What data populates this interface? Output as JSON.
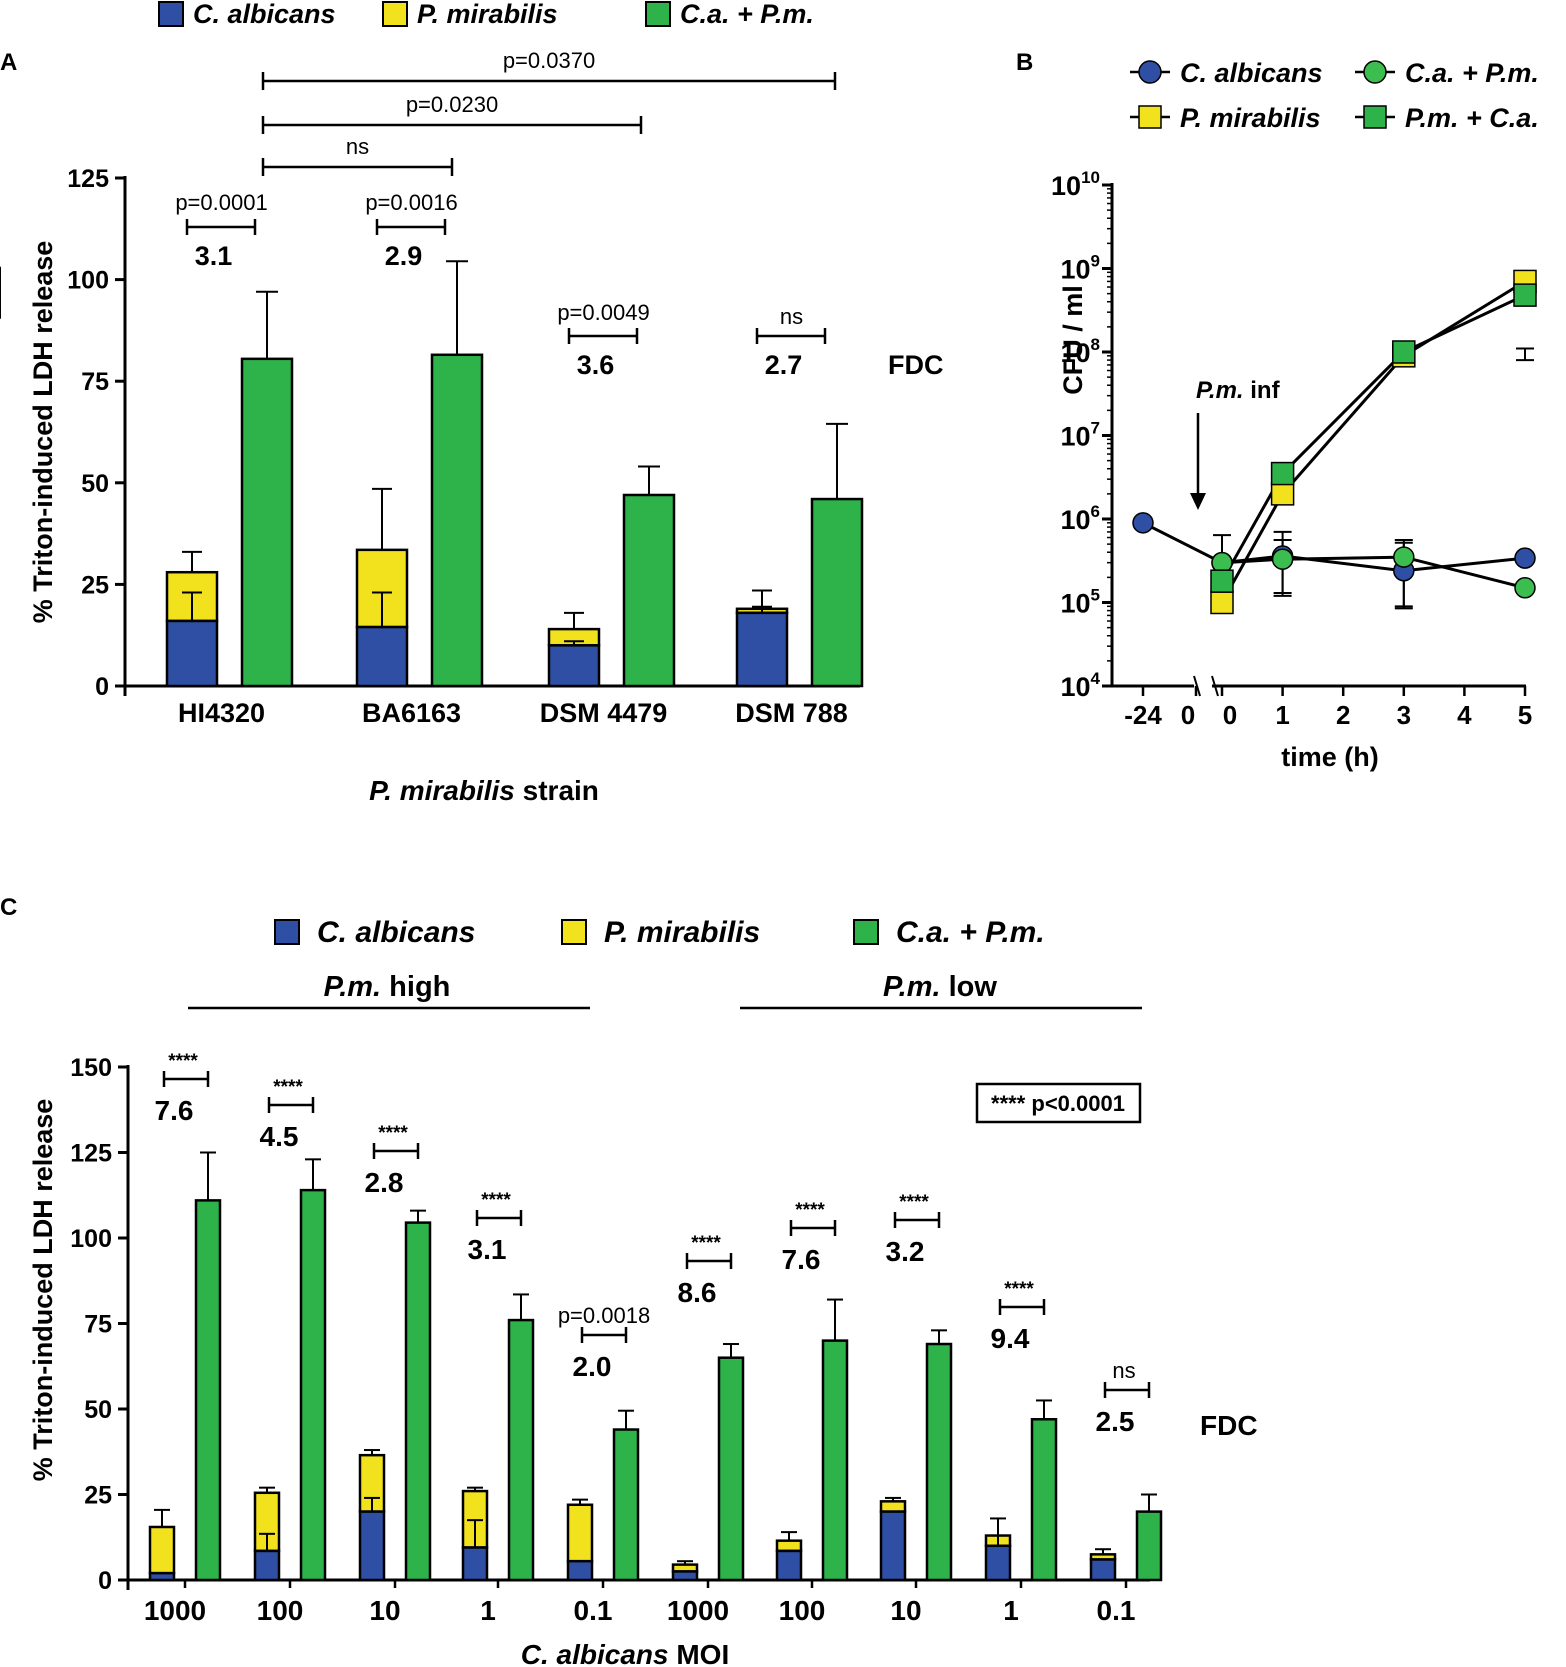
{
  "colors": {
    "ca": "#2e4fa4",
    "pm": "#f2e21e",
    "mix": "#2db34a",
    "circle_mix": "#3cbd4f"
  },
  "chart_data": [
    {
      "panel": "A",
      "type": "bar",
      "stacked_series": [
        "C. albicans",
        "P. mirabilis"
      ],
      "legend": [
        {
          "label": "C. albicans",
          "color_key": "ca"
        },
        {
          "label": "P. mirabilis",
          "color_key": "pm"
        },
        {
          "label": "C.a. + P.m.",
          "color_key": "mix"
        }
      ],
      "ylabel": "% Triton-induced LDH release",
      "xlabel_italic": "P. mirabilis",
      "xlabel_rest": " strain",
      "ylim": [
        0,
        125
      ],
      "yticks": [
        "0",
        "25",
        "50",
        "75",
        "100",
        "125"
      ],
      "categories": [
        "HI4320",
        "BA6163",
        "DSM 4479",
        "DSM 788"
      ],
      "series": [
        {
          "name": "C. albicans",
          "values": [
            16,
            14.5,
            10,
            18
          ],
          "errors": [
            7,
            8.5,
            1,
            1.5
          ]
        },
        {
          "name": "P. mirabilis",
          "values": [
            12,
            19,
            4,
            1
          ],
          "errors": [
            5,
            15,
            4,
            4.5
          ]
        },
        {
          "name": "C.a. + P.m.",
          "values": [
            80.5,
            81.5,
            47,
            46
          ],
          "errors": [
            16.5,
            23,
            7,
            18.5
          ]
        }
      ],
      "fdc_label": "FDC",
      "fdc_values": [
        "3.1",
        "2.9",
        "3.6",
        "2.7"
      ],
      "within_p": [
        "p=0.0001",
        "p=0.0016",
        "p=0.0049",
        "ns"
      ],
      "between_p": [
        "ns",
        "p=0.0230",
        "p=0.0370"
      ]
    },
    {
      "panel": "B",
      "type": "line",
      "ylabel": "CFU / ml",
      "xlabel": "time (h)",
      "yscale": "log",
      "ylim_exponents": [
        4,
        10
      ],
      "ytick_base": "10",
      "ytick_exponents": [
        "4",
        "5",
        "6",
        "7",
        "8",
        "9",
        "10"
      ],
      "xtick_labels": [
        "-24",
        "0",
        "0",
        "1",
        "2",
        "3",
        "4",
        "5"
      ],
      "annotation_italic": "P.m.",
      "annotation_rest": " inf",
      "legend": [
        {
          "label": "C. albicans",
          "marker": "circle",
          "color_key": "ca"
        },
        {
          "label": "C.a. + P.m.",
          "marker": "circle",
          "color_key": "circle_mix"
        },
        {
          "label": "P. mirabilis",
          "marker": "square",
          "color_key": "pm"
        },
        {
          "label": "P.m. + C.a.",
          "marker": "square",
          "color_key": "mix"
        }
      ],
      "series": [
        {
          "name": "C. albicans",
          "x": [
            "-24",
            "0",
            "1",
            "3",
            "5"
          ],
          "values": [
            900000,
            300000,
            360000,
            240000,
            340000
          ]
        },
        {
          "name": "C.a. + P.m.",
          "x": [
            "0",
            "1",
            "3",
            "5"
          ],
          "values": [
            300000,
            330000,
            350000,
            150000
          ]
        },
        {
          "name": "P. mirabilis",
          "x": [
            "0",
            "1",
            "3",
            "5"
          ],
          "values": [
            100000,
            2000000,
            90000000,
            700000000
          ]
        },
        {
          "name": "P.m. + C.a.",
          "x": [
            "0",
            "1",
            "3",
            "5"
          ],
          "values": [
            180000,
            3500000,
            100000000,
            480000000
          ]
        }
      ]
    },
    {
      "panel": "C",
      "type": "bar",
      "stacked_series": [
        "C. albicans",
        "P. mirabilis"
      ],
      "legend": [
        {
          "label": "C. albicans",
          "color_key": "ca"
        },
        {
          "label": "P. mirabilis",
          "color_key": "pm"
        },
        {
          "label": "C.a. + P.m.",
          "color_key": "mix"
        }
      ],
      "ylabel": "% Triton-induced LDH release",
      "xlabel_italic": "C. albicans",
      "xlabel_rest": " MOI",
      "ylim": [
        0,
        150
      ],
      "yticks": [
        "0",
        "25",
        "50",
        "75",
        "100",
        "125",
        "150"
      ],
      "group_labels": [
        {
          "italic": "P.m.",
          "rest": " high"
        },
        {
          "italic": "P.m.",
          "rest": " low"
        }
      ],
      "categories": [
        "1000",
        "100",
        "10",
        "1",
        "0.1",
        "1000",
        "100",
        "10",
        "1",
        "0.1"
      ],
      "series": [
        {
          "name": "C. albicans",
          "values": [
            2,
            8.5,
            20,
            9.5,
            5.5,
            2.5,
            8.5,
            20,
            10,
            6
          ],
          "errors": [
            0,
            5,
            4,
            8,
            0,
            0,
            0,
            0,
            8,
            0
          ]
        },
        {
          "name": "P. mirabilis",
          "values": [
            13.5,
            17,
            16.5,
            16.5,
            16.5,
            2,
            3,
            3,
            3,
            1.5
          ],
          "errors": [
            5,
            1.5,
            1.5,
            1,
            1.5,
            1,
            2.5,
            1,
            0,
            1.5
          ]
        },
        {
          "name": "C.a. + P.m.",
          "values": [
            111,
            114,
            104.5,
            76,
            44,
            65,
            70,
            69,
            47,
            20
          ],
          "errors": [
            14,
            9,
            3.5,
            7.5,
            5.5,
            4,
            12,
            4,
            5.5,
            5
          ]
        }
      ],
      "fdc_label": "FDC",
      "fdc_values": [
        "7.6",
        "4.5",
        "2.8",
        "3.1",
        "2.0",
        "8.6",
        "7.6",
        "3.2",
        "9.4",
        "2.5"
      ],
      "p_labels": [
        "****",
        "****",
        "****",
        "****",
        "p=0.0018",
        "****",
        "****",
        "****",
        "****",
        "ns"
      ],
      "significance_key": "**** p<0.0001"
    }
  ]
}
